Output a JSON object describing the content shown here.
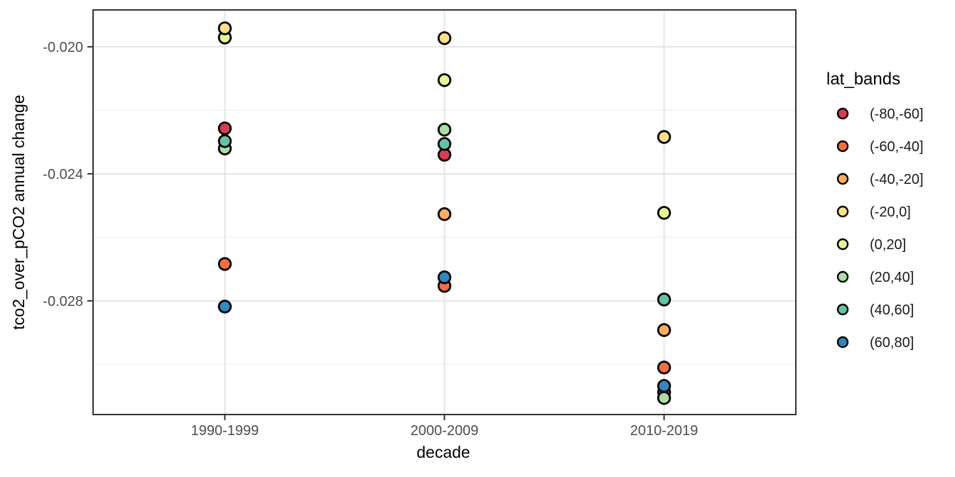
{
  "chart": {
    "background": "#FFFFFF",
    "panel_background": "#FFFFFF",
    "panel_border_color": "#343434",
    "grid_major_color": "#E4E4E4",
    "grid_minor_color": "#EFEFEF",
    "axis_tick_color": "#333333",
    "tick_label_color": "#4D4D4D",
    "point_stroke_color": "#000000"
  },
  "x_axis": {
    "title": "decade",
    "categories": [
      "1990-1999",
      "2000-2009",
      "2010-2019"
    ]
  },
  "y_axis": {
    "title": "tco2_over_pCO2 annual change",
    "tick_labels": [
      "-0.020",
      "-0.024",
      "-0.028"
    ],
    "major_ticks": [
      -0.02,
      -0.024,
      -0.028
    ],
    "minor_ticks": [
      -0.022,
      -0.026,
      -0.03
    ]
  },
  "legend": {
    "title": "lat_bands",
    "items": [
      {
        "label": "(-80,-60]",
        "color": "#D53E4F"
      },
      {
        "label": "(-60,-40]",
        "color": "#F46D43"
      },
      {
        "label": "(-40,-20]",
        "color": "#FDAE61"
      },
      {
        "label": "(-20,0]",
        "color": "#FEE08B"
      },
      {
        "label": "(0,20]",
        "color": "#E6F598"
      },
      {
        "label": "(20,40]",
        "color": "#ABDDA4"
      },
      {
        "label": "(40,60]",
        "color": "#66C2A5"
      },
      {
        "label": "(60,80]",
        "color": "#3288BD"
      }
    ]
  },
  "chart_data": {
    "type": "scatter",
    "title": "",
    "xlabel": "decade",
    "ylabel": "tco2_over_pCO2 annual change",
    "categories": [
      "1990-1999",
      "2000-2009",
      "2010-2019"
    ],
    "ylim": [
      -0.03158,
      -0.01884
    ],
    "grid": true,
    "legend_title": "lat_bands",
    "legend_position": "right",
    "series": [
      {
        "name": "(-80,-60]",
        "color": "#D53E4F",
        "values": [
          -0.02257,
          -0.0234,
          -0.03088
        ]
      },
      {
        "name": "(-60,-40]",
        "color": "#F46D43",
        "values": [
          -0.02684,
          -0.02753,
          -0.0301
        ]
      },
      {
        "name": "(-40,-20]",
        "color": "#FDAE61",
        "values": [
          null,
          -0.02527,
          -0.02892
        ]
      },
      {
        "name": "(-20,0]",
        "color": "#FEE08B",
        "values": [
          -0.01942,
          -0.01973,
          -0.02284
        ]
      },
      {
        "name": "(0,20]",
        "color": "#E6F598",
        "values": [
          -0.01971,
          -0.02105,
          -0.02523
        ]
      },
      {
        "name": "(20,40]",
        "color": "#ABDDA4",
        "values": [
          -0.0232,
          -0.02261,
          -0.03106
        ]
      },
      {
        "name": "(40,60]",
        "color": "#66C2A5",
        "values": [
          -0.02297,
          -0.02306,
          -0.02796
        ]
      },
      {
        "name": "(60,80]",
        "color": "#3288BD",
        "values": [
          -0.02818,
          -0.02726,
          -0.03068
        ]
      }
    ],
    "render_order": [
      0,
      1,
      2,
      4,
      3,
      5,
      6,
      7
    ]
  }
}
